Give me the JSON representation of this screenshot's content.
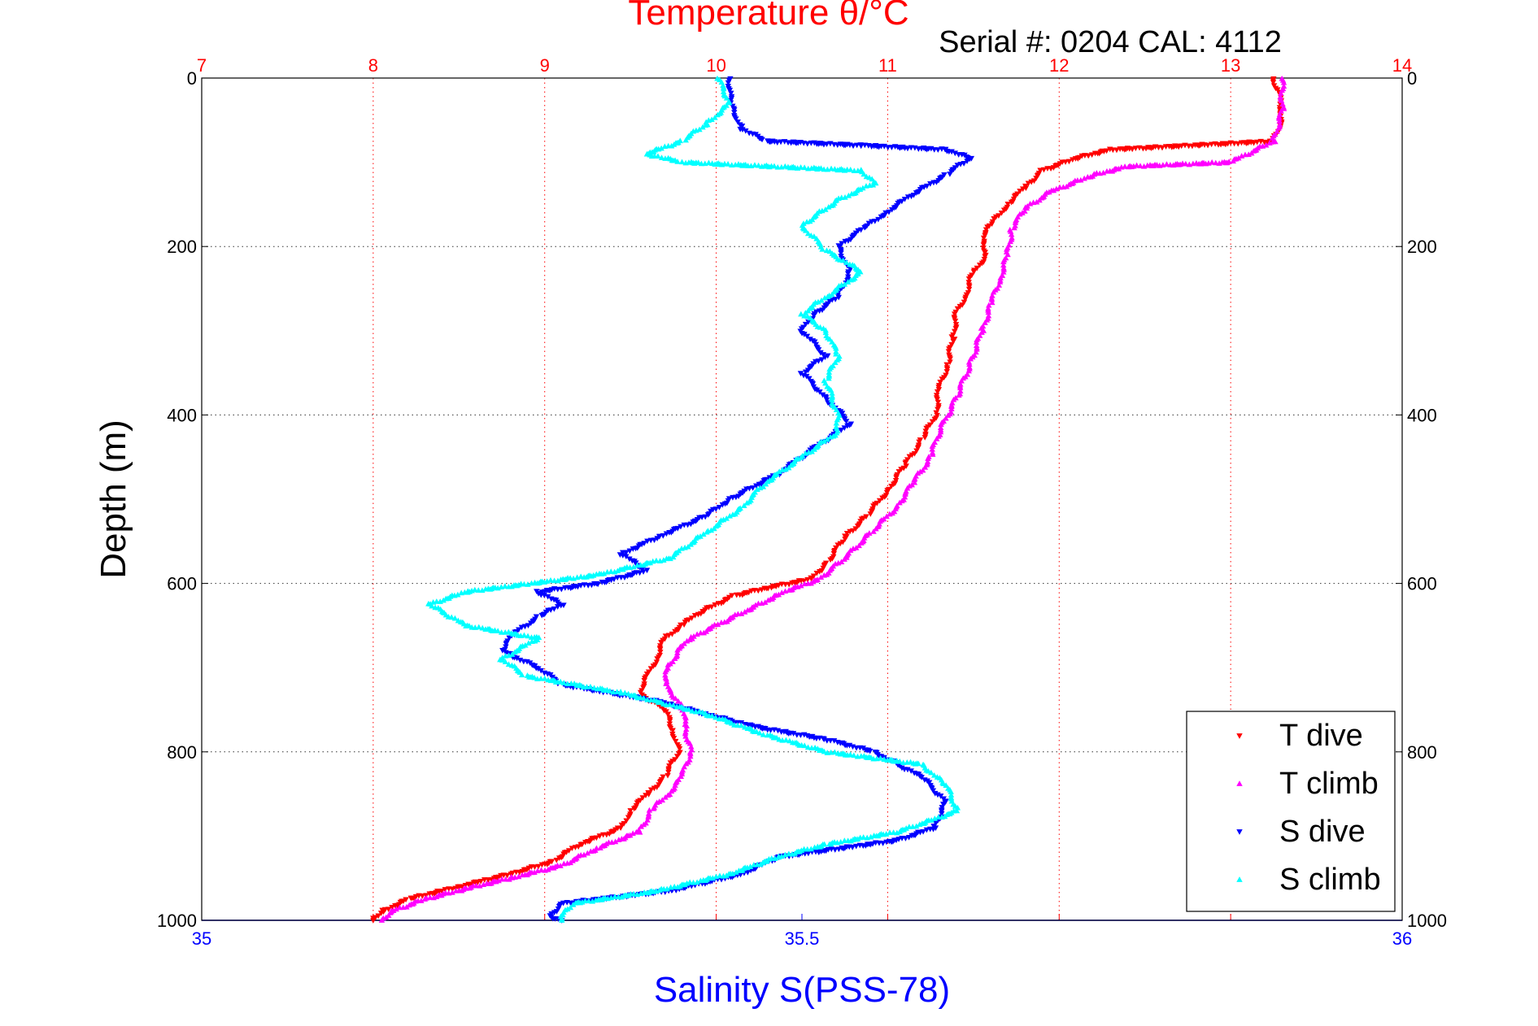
{
  "chart_data": {
    "type": "scatter",
    "title": "Temperature θ/°C",
    "subtitle": "Serial #: 0204  CAL: 4112",
    "ylabel": "Depth (m)",
    "xlabel_bottom": "Salinity S(PSS-78)",
    "xlabel_top": "Temperature θ/°C",
    "ylim": [
      1000,
      0
    ],
    "y_ticks": [
      "0",
      "200",
      "400",
      "600",
      "800",
      "1000"
    ],
    "temperature_axis": {
      "lim": [
        7,
        14
      ],
      "ticks": [
        "7",
        "8",
        "9",
        "10",
        "11",
        "12",
        "13",
        "14"
      ]
    },
    "salinity_axis": {
      "lim": [
        35,
        36
      ],
      "ticks": [
        "35",
        "35.5",
        "36"
      ]
    },
    "grid": true,
    "legend_position": "bottom-right",
    "colors": {
      "temperature_axis": "#ff0000",
      "salinity_axis": "#0000ff",
      "t_dive": "#ff0000",
      "t_climb": "#ff00ff",
      "s_dive": "#0000ff",
      "s_climb": "#00ffff"
    },
    "series": [
      {
        "name": "T dive",
        "axis": "temperature",
        "marker": "down-triangle",
        "points": [
          [
            13.25,
            0
          ],
          [
            13.28,
            20
          ],
          [
            13.3,
            40
          ],
          [
            13.28,
            60
          ],
          [
            13.25,
            75
          ],
          [
            12.3,
            85
          ],
          [
            12.1,
            95
          ],
          [
            11.9,
            110
          ],
          [
            11.8,
            130
          ],
          [
            11.7,
            150
          ],
          [
            11.6,
            175
          ],
          [
            11.55,
            190
          ],
          [
            11.58,
            210
          ],
          [
            11.5,
            230
          ],
          [
            11.45,
            260
          ],
          [
            11.4,
            280
          ],
          [
            11.38,
            310
          ],
          [
            11.35,
            340
          ],
          [
            11.3,
            370
          ],
          [
            11.28,
            400
          ],
          [
            11.2,
            430
          ],
          [
            11.1,
            460
          ],
          [
            11.0,
            490
          ],
          [
            10.88,
            520
          ],
          [
            10.75,
            545
          ],
          [
            10.65,
            575
          ],
          [
            10.55,
            595
          ],
          [
            10.3,
            605
          ],
          [
            10.1,
            615
          ],
          [
            9.9,
            635
          ],
          [
            9.8,
            650
          ],
          [
            9.7,
            665
          ],
          [
            9.65,
            690
          ],
          [
            9.6,
            710
          ],
          [
            9.55,
            730
          ],
          [
            9.7,
            750
          ],
          [
            9.75,
            775
          ],
          [
            9.78,
            800
          ],
          [
            9.7,
            830
          ],
          [
            9.6,
            850
          ],
          [
            9.5,
            870
          ],
          [
            9.45,
            890
          ],
          [
            9.2,
            910
          ],
          [
            9.05,
            930
          ],
          [
            8.8,
            945
          ],
          [
            8.5,
            960
          ],
          [
            8.2,
            975
          ],
          [
            8.05,
            990
          ],
          [
            8.0,
            1000
          ]
        ]
      },
      {
        "name": "T climb",
        "axis": "temperature",
        "marker": "up-triangle",
        "points": [
          [
            13.3,
            0
          ],
          [
            13.3,
            40
          ],
          [
            13.25,
            75
          ],
          [
            13.0,
            100
          ],
          [
            12.4,
            105
          ],
          [
            12.2,
            115
          ],
          [
            11.95,
            135
          ],
          [
            11.8,
            155
          ],
          [
            11.72,
            180
          ],
          [
            11.7,
            210
          ],
          [
            11.65,
            240
          ],
          [
            11.6,
            270
          ],
          [
            11.55,
            300
          ],
          [
            11.48,
            340
          ],
          [
            11.4,
            380
          ],
          [
            11.3,
            420
          ],
          [
            11.25,
            450
          ],
          [
            11.15,
            480
          ],
          [
            11.05,
            510
          ],
          [
            10.9,
            540
          ],
          [
            10.75,
            570
          ],
          [
            10.6,
            595
          ],
          [
            10.4,
            610
          ],
          [
            10.2,
            630
          ],
          [
            10.0,
            650
          ],
          [
            9.85,
            665
          ],
          [
            9.78,
            680
          ],
          [
            9.72,
            700
          ],
          [
            9.7,
            720
          ],
          [
            9.8,
            745
          ],
          [
            9.82,
            770
          ],
          [
            9.85,
            800
          ],
          [
            9.8,
            830
          ],
          [
            9.72,
            850
          ],
          [
            9.62,
            870
          ],
          [
            9.55,
            895
          ],
          [
            9.3,
            915
          ],
          [
            9.1,
            935
          ],
          [
            8.8,
            950
          ],
          [
            8.55,
            962
          ],
          [
            8.3,
            975
          ],
          [
            8.1,
            990
          ],
          [
            8.05,
            1000
          ]
        ]
      },
      {
        "name": "S dive",
        "axis": "salinity",
        "marker": "down-triangle",
        "points": [
          [
            35.44,
            0
          ],
          [
            35.44,
            30
          ],
          [
            35.45,
            60
          ],
          [
            35.47,
            75
          ],
          [
            35.55,
            80
          ],
          [
            35.62,
            85
          ],
          [
            35.64,
            95
          ],
          [
            35.62,
            115
          ],
          [
            35.59,
            140
          ],
          [
            35.57,
            160
          ],
          [
            35.55,
            180
          ],
          [
            35.53,
            200
          ],
          [
            35.54,
            230
          ],
          [
            35.53,
            260
          ],
          [
            35.51,
            280
          ],
          [
            35.5,
            300
          ],
          [
            35.52,
            330
          ],
          [
            35.5,
            350
          ],
          [
            35.52,
            380
          ],
          [
            35.54,
            410
          ],
          [
            35.51,
            440
          ],
          [
            35.48,
            470
          ],
          [
            35.44,
            500
          ],
          [
            35.42,
            520
          ],
          [
            35.38,
            545
          ],
          [
            35.35,
            565
          ],
          [
            35.37,
            585
          ],
          [
            35.33,
            600
          ],
          [
            35.28,
            610
          ],
          [
            35.3,
            625
          ],
          [
            35.28,
            640
          ],
          [
            35.26,
            660
          ],
          [
            35.25,
            680
          ],
          [
            35.28,
            700
          ],
          [
            35.3,
            720
          ],
          [
            35.38,
            740
          ],
          [
            35.42,
            755
          ],
          [
            35.46,
            770
          ],
          [
            35.52,
            785
          ],
          [
            35.56,
            800
          ],
          [
            35.6,
            830
          ],
          [
            35.62,
            860
          ],
          [
            35.61,
            890
          ],
          [
            35.58,
            905
          ],
          [
            35.53,
            915
          ],
          [
            35.48,
            925
          ],
          [
            35.45,
            945
          ],
          [
            35.39,
            965
          ],
          [
            35.3,
            980
          ],
          [
            35.29,
            995
          ],
          [
            35.3,
            1000
          ]
        ]
      },
      {
        "name": "S climb",
        "axis": "salinity",
        "marker": "up-triangle",
        "points": [
          [
            35.43,
            0
          ],
          [
            35.44,
            30
          ],
          [
            35.42,
            55
          ],
          [
            35.4,
            75
          ],
          [
            35.37,
            90
          ],
          [
            35.4,
            100
          ],
          [
            35.55,
            110
          ],
          [
            35.56,
            125
          ],
          [
            35.53,
            145
          ],
          [
            35.5,
            175
          ],
          [
            35.52,
            205
          ],
          [
            35.55,
            230
          ],
          [
            35.52,
            260
          ],
          [
            35.5,
            280
          ],
          [
            35.52,
            300
          ],
          [
            35.53,
            330
          ],
          [
            35.52,
            360
          ],
          [
            35.53,
            400
          ],
          [
            35.53,
            420
          ],
          [
            35.5,
            450
          ],
          [
            35.47,
            480
          ],
          [
            35.45,
            510
          ],
          [
            35.42,
            540
          ],
          [
            35.39,
            570
          ],
          [
            35.33,
            590
          ],
          [
            35.22,
            610
          ],
          [
            35.19,
            625
          ],
          [
            35.22,
            650
          ],
          [
            35.28,
            665
          ],
          [
            35.25,
            690
          ],
          [
            35.27,
            710
          ],
          [
            35.35,
            730
          ],
          [
            35.42,
            755
          ],
          [
            35.47,
            780
          ],
          [
            35.52,
            800
          ],
          [
            35.6,
            815
          ],
          [
            35.62,
            840
          ],
          [
            35.63,
            870
          ],
          [
            35.58,
            895
          ],
          [
            35.52,
            910
          ],
          [
            35.48,
            925
          ],
          [
            35.44,
            945
          ],
          [
            35.38,
            965
          ],
          [
            35.31,
            980
          ],
          [
            35.3,
            995
          ],
          [
            35.3,
            1000
          ]
        ]
      }
    ]
  }
}
